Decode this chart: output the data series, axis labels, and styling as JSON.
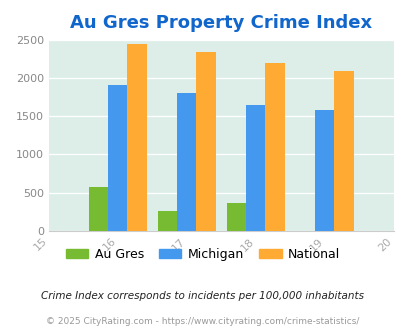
{
  "title": "Au Gres Property Crime Index",
  "years": [
    2015,
    2016,
    2017,
    2018,
    2019,
    2020
  ],
  "xtick_labels": [
    "15",
    "16",
    "17",
    "18",
    "19",
    "20"
  ],
  "bar_years": [
    2016,
    2017,
    2018,
    2019
  ],
  "au_gres": [
    580,
    255,
    365,
    0
  ],
  "michigan": [
    1910,
    1800,
    1640,
    1575
  ],
  "national": [
    2440,
    2340,
    2195,
    2095
  ],
  "colors": {
    "au_gres": "#77bb33",
    "michigan": "#4499ee",
    "national": "#ffaa33"
  },
  "ylim": [
    0,
    2500
  ],
  "yticks": [
    0,
    500,
    1000,
    1500,
    2000,
    2500
  ],
  "title_color": "#1166cc",
  "title_fontsize": 13,
  "bg_color": "#ddeee8",
  "legend_labels": [
    "Au Gres",
    "Michigan",
    "National"
  ],
  "footnote1": "Crime Index corresponds to incidents per 100,000 inhabitants",
  "footnote2": "© 2025 CityRating.com - https://www.cityrating.com/crime-statistics/",
  "bar_width": 0.28
}
